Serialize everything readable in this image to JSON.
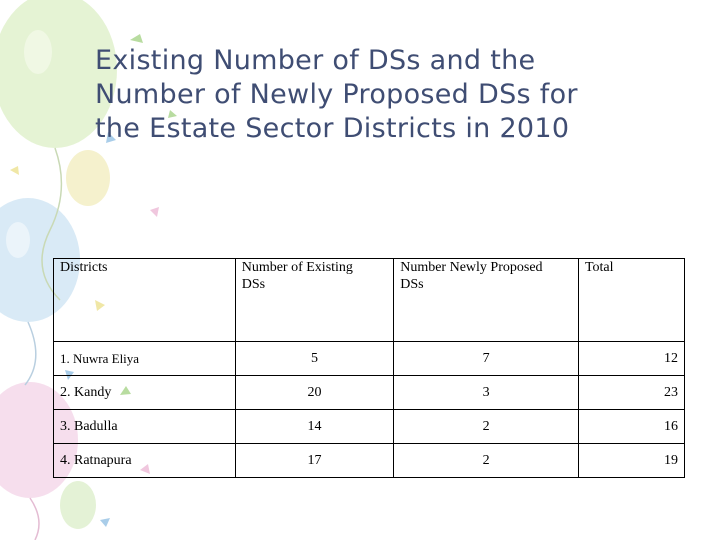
{
  "slide": {
    "title": "Existing Number of DSs and the\nNumber of Newly Proposed DSs for\nthe Estate Sector Districts in 2010"
  },
  "table": {
    "headers": [
      "Districts",
      "Number of Existing\n      DSs",
      "Number Newly Proposed\n      DSs",
      "Total"
    ],
    "rows": [
      [
        "1. Nuwra Eliya",
        "5",
        "7",
        "12"
      ],
      [
        "2. Kandy",
        "20",
        "3",
        "23"
      ],
      [
        "3. Badulla",
        "14",
        "2",
        "16"
      ],
      [
        "4. Ratnapura",
        "17",
        "2",
        "19"
      ]
    ]
  },
  "colors": {
    "title": "#3f4d73",
    "balloon_green": "#d7ecc0",
    "balloon_blue": "#cde3f3",
    "balloon_pink": "#f3d3e6",
    "balloon_yellow": "#f4efbe"
  }
}
